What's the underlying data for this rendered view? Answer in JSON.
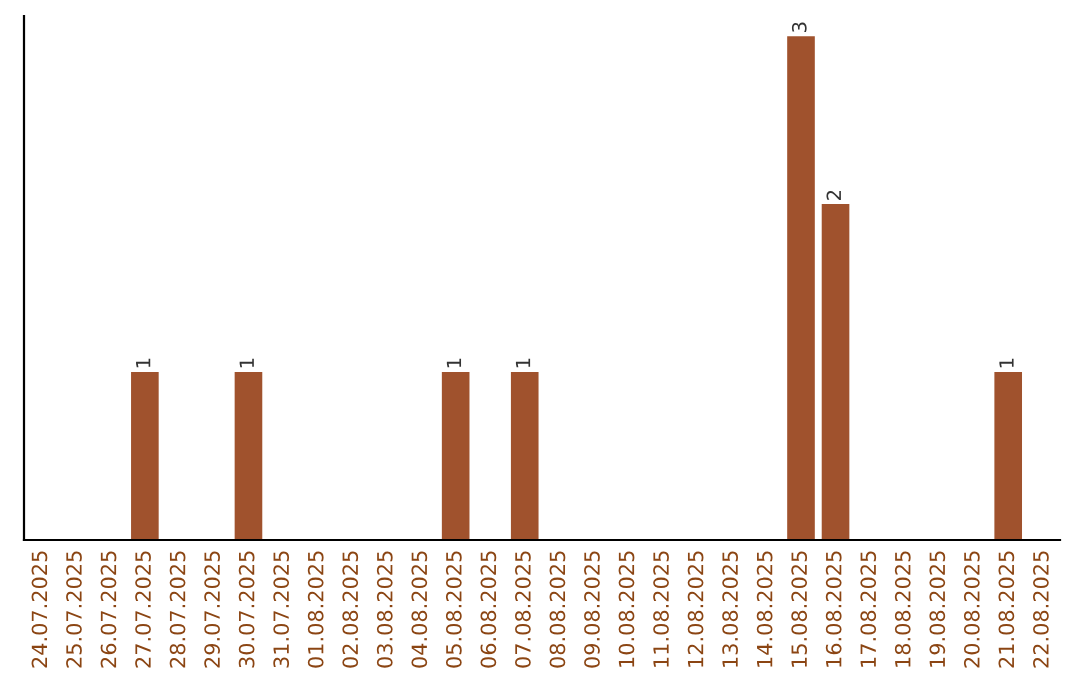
{
  "chart_data": {
    "type": "bar",
    "categories": [
      "24.07.2025",
      "25.07.2025",
      "26.07.2025",
      "27.07.2025",
      "28.07.2025",
      "29.07.2025",
      "30.07.2025",
      "31.07.2025",
      "01.08.2025",
      "02.08.2025",
      "03.08.2025",
      "04.08.2025",
      "05.08.2025",
      "06.08.2025",
      "07.08.2025",
      "08.08.2025",
      "09.08.2025",
      "10.08.2025",
      "11.08.2025",
      "12.08.2025",
      "13.08.2025",
      "14.08.2025",
      "15.08.2025",
      "16.08.2025",
      "17.08.2025",
      "18.08.2025",
      "19.08.2025",
      "20.08.2025",
      "21.08.2025",
      "22.08.2025"
    ],
    "values": [
      0,
      0,
      0,
      1,
      0,
      0,
      1,
      0,
      0,
      0,
      0,
      0,
      1,
      0,
      1,
      0,
      0,
      0,
      0,
      0,
      0,
      0,
      3,
      2,
      0,
      0,
      0,
      0,
      1,
      0
    ],
    "value_labels": [
      null,
      null,
      null,
      "1",
      null,
      null,
      "1",
      null,
      null,
      null,
      null,
      null,
      "1",
      null,
      "1",
      null,
      null,
      null,
      null,
      null,
      null,
      null,
      "3",
      "2",
      null,
      null,
      null,
      null,
      "1",
      null
    ],
    "color": "#a0522d",
    "tick_labels": "x",
    "grid": false,
    "legend": false
  }
}
